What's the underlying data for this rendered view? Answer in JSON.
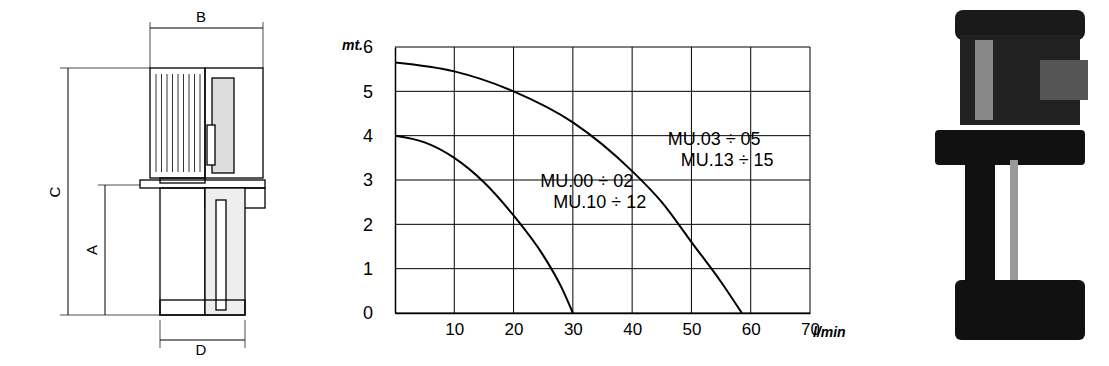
{
  "chart_data": {
    "type": "line",
    "y_label": "mt.",
    "x_label": "l/min",
    "series": [
      {
        "x": [
          0,
          5,
          10,
          15,
          20,
          25,
          28,
          30
        ],
        "values": [
          4.0,
          3.85,
          3.5,
          2.95,
          2.2,
          1.3,
          0.6,
          0
        ],
        "color": "#000000"
      },
      {
        "x": [
          0,
          10,
          20,
          30,
          40,
          45,
          50,
          55,
          58.5
        ],
        "values": [
          5.65,
          5.45,
          5.0,
          4.3,
          3.2,
          2.5,
          1.6,
          0.7,
          0
        ],
        "color": "#000000"
      }
    ],
    "annotations": [
      {
        "text": [
          "MU.00 ÷ 02",
          "MU.10 ÷ 12"
        ],
        "x": 24.5,
        "y": 2.85
      },
      {
        "text": [
          "MU.03 ÷ 05",
          "MU.13 ÷ 15"
        ],
        "x": 46,
        "y": 3.8
      }
    ],
    "xlim": [
      0,
      70
    ],
    "xticks": [
      10,
      20,
      30,
      40,
      50,
      60,
      70
    ],
    "ylim": [
      0,
      6
    ],
    "yticks": [
      0,
      1,
      2,
      3,
      4,
      5,
      6
    ],
    "grid": true
  },
  "drawing": {
    "dimensions": [
      "B",
      "C",
      "A",
      "D"
    ]
  }
}
